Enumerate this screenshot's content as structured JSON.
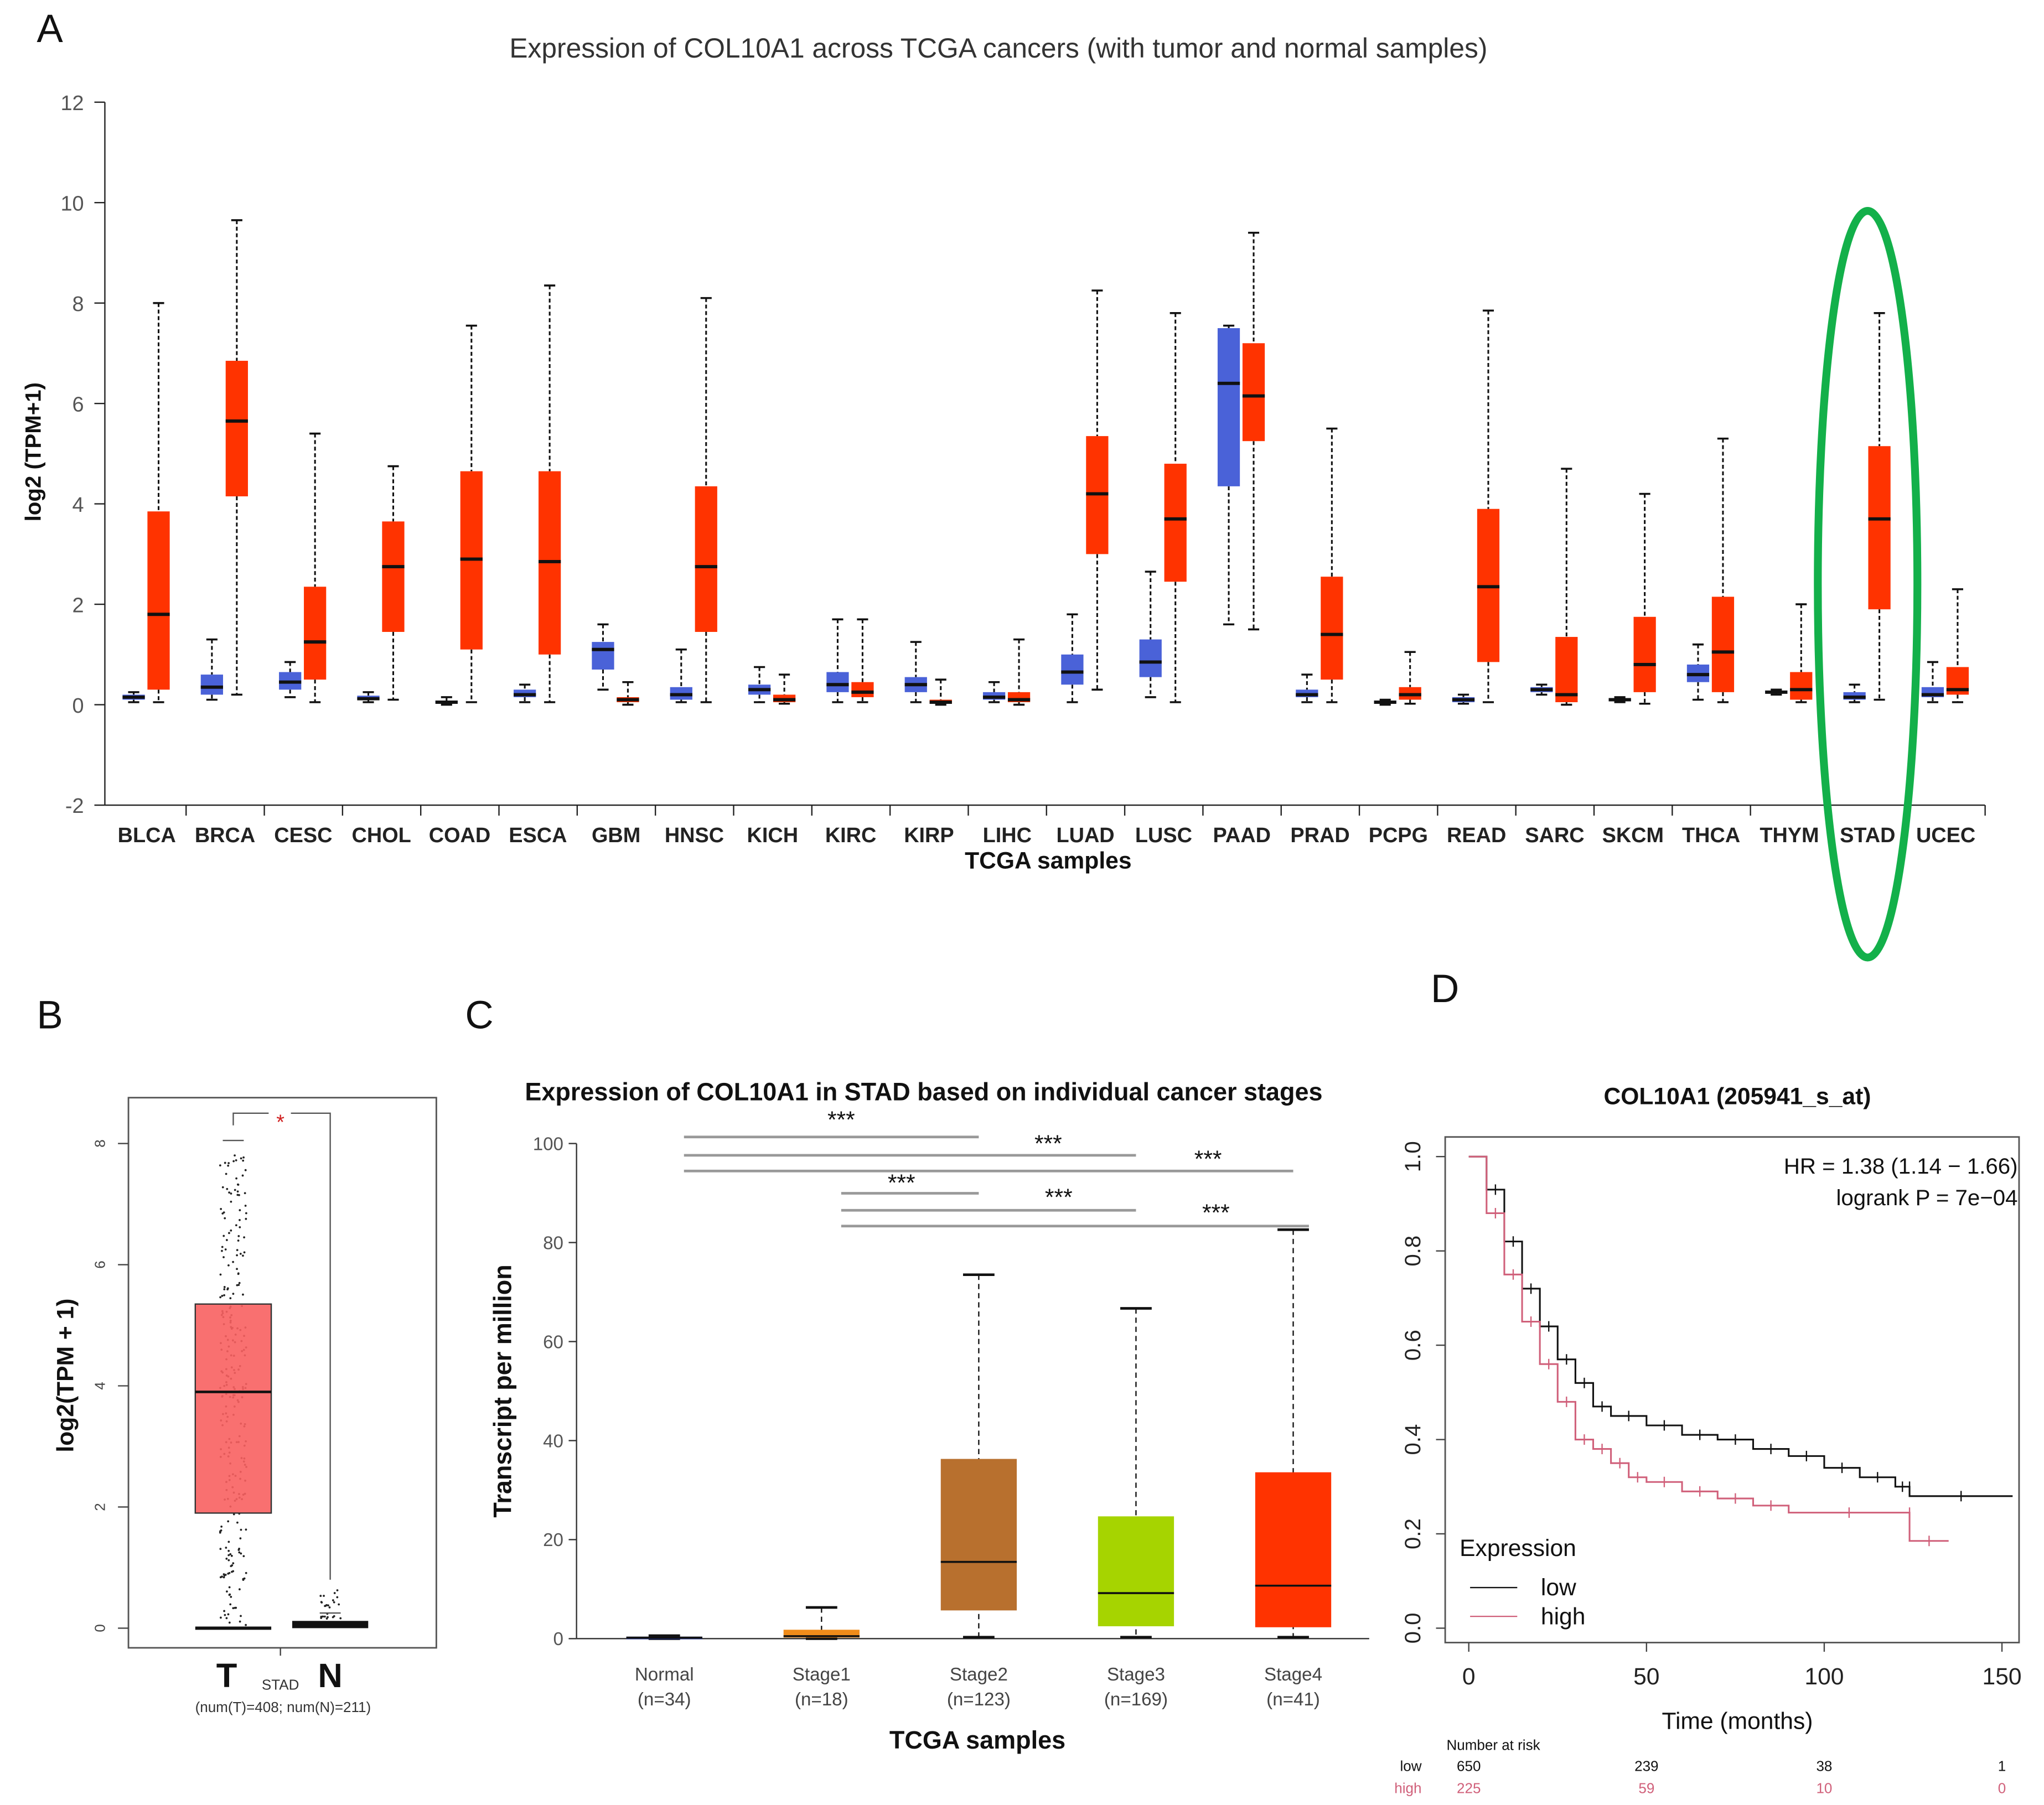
{
  "panel_labels": {
    "a": "A",
    "b": "B",
    "c": "C",
    "d": "D"
  },
  "chart_data": [
    {
      "type": "box",
      "panel": "A",
      "title": "Expression of COL10A1 across TCGA cancers (with tumor and normal samples)",
      "xlabel": "TCGA samples",
      "ylabel": "log2 (TPM+1)",
      "ylim": [
        -2,
        12
      ],
      "yticks": [
        "-2",
        "0",
        "2",
        "4",
        "6",
        "8",
        "10",
        "12"
      ],
      "colors": {
        "normal": "#4a62d8",
        "tumor": "#ff3300",
        "highlight": "#13b04a"
      },
      "highlighted": "STAD",
      "series_order": [
        "normal [min,q1,median,q3,max]",
        "tumor [min,q1,median,q3,max]"
      ],
      "categories": [
        {
          "name": "BLCA",
          "normal": [
            0.05,
            0.1,
            0.15,
            0.2,
            0.25
          ],
          "tumor": [
            0.05,
            0.3,
            1.8,
            3.85,
            8.0
          ]
        },
        {
          "name": "BRCA",
          "normal": [
            0.1,
            0.2,
            0.35,
            0.6,
            1.3
          ],
          "tumor": [
            0.2,
            4.15,
            5.65,
            6.85,
            9.65
          ]
        },
        {
          "name": "CESC",
          "normal": [
            0.15,
            0.3,
            0.45,
            0.65,
            0.85
          ],
          "tumor": [
            0.05,
            0.5,
            1.25,
            2.35,
            5.4
          ]
        },
        {
          "name": "CHOL",
          "normal": [
            0.05,
            0.1,
            0.12,
            0.18,
            0.25
          ],
          "tumor": [
            0.1,
            1.45,
            2.75,
            3.65,
            4.75
          ]
        },
        {
          "name": "COAD",
          "normal": [
            0.0,
            0.03,
            0.05,
            0.08,
            0.15
          ],
          "tumor": [
            0.05,
            1.1,
            2.9,
            4.65,
            7.55
          ]
        },
        {
          "name": "ESCA",
          "normal": [
            0.05,
            0.15,
            0.2,
            0.3,
            0.4
          ],
          "tumor": [
            0.05,
            1.0,
            2.85,
            4.65,
            8.35
          ]
        },
        {
          "name": "GBM",
          "normal": [
            0.3,
            0.7,
            1.1,
            1.25,
            1.6
          ],
          "tumor": [
            0.0,
            0.05,
            0.1,
            0.15,
            0.45
          ]
        },
        {
          "name": "HNSC",
          "normal": [
            0.05,
            0.1,
            0.2,
            0.35,
            1.1
          ],
          "tumor": [
            0.05,
            1.45,
            2.75,
            4.35,
            8.1
          ]
        },
        {
          "name": "KICH",
          "normal": [
            0.05,
            0.2,
            0.3,
            0.4,
            0.75
          ],
          "tumor": [
            0.02,
            0.05,
            0.1,
            0.2,
            0.6
          ]
        },
        {
          "name": "KIRC",
          "normal": [
            0.05,
            0.25,
            0.4,
            0.65,
            1.7
          ],
          "tumor": [
            0.05,
            0.15,
            0.25,
            0.45,
            1.7
          ]
        },
        {
          "name": "KIRP",
          "normal": [
            0.05,
            0.25,
            0.4,
            0.55,
            1.25
          ],
          "tumor": [
            0.0,
            0.02,
            0.05,
            0.1,
            0.5
          ]
        },
        {
          "name": "LIHC",
          "normal": [
            0.05,
            0.1,
            0.15,
            0.25,
            0.45
          ],
          "tumor": [
            0.0,
            0.05,
            0.1,
            0.25,
            1.3
          ]
        },
        {
          "name": "LUAD",
          "normal": [
            0.05,
            0.4,
            0.65,
            1.0,
            1.8
          ],
          "tumor": [
            0.3,
            3.0,
            4.2,
            5.35,
            8.25
          ]
        },
        {
          "name": "LUSC",
          "normal": [
            0.15,
            0.55,
            0.85,
            1.3,
            2.65
          ],
          "tumor": [
            0.05,
            2.45,
            3.7,
            4.8,
            7.8
          ]
        },
        {
          "name": "PAAD",
          "normal": [
            1.6,
            4.35,
            6.4,
            7.5,
            7.55
          ],
          "tumor": [
            1.5,
            5.25,
            6.15,
            7.2,
            9.4
          ]
        },
        {
          "name": "PRAD",
          "normal": [
            0.05,
            0.15,
            0.2,
            0.3,
            0.6
          ],
          "tumor": [
            0.05,
            0.5,
            1.4,
            2.55,
            5.5
          ]
        },
        {
          "name": "PCPG",
          "normal": [
            0.0,
            0.03,
            0.05,
            0.08,
            0.1
          ],
          "tumor": [
            0.02,
            0.1,
            0.2,
            0.35,
            1.05
          ]
        },
        {
          "name": "READ",
          "normal": [
            0.02,
            0.05,
            0.1,
            0.15,
            0.2
          ],
          "tumor": [
            0.05,
            0.85,
            2.35,
            3.9,
            7.85
          ]
        },
        {
          "name": "SARC",
          "normal": [
            0.2,
            0.25,
            0.3,
            0.35,
            0.4
          ],
          "tumor": [
            0.0,
            0.05,
            0.2,
            1.35,
            4.7
          ]
        },
        {
          "name": "SKCM",
          "normal": [
            0.05,
            0.08,
            0.1,
            0.12,
            0.15
          ],
          "tumor": [
            0.02,
            0.25,
            0.8,
            1.75,
            4.2
          ]
        },
        {
          "name": "THCA",
          "normal": [
            0.1,
            0.45,
            0.6,
            0.8,
            1.2
          ],
          "tumor": [
            0.05,
            0.25,
            1.05,
            2.15,
            5.3
          ]
        },
        {
          "name": "THYM",
          "normal": [
            0.2,
            0.23,
            0.25,
            0.28,
            0.3
          ],
          "tumor": [
            0.05,
            0.1,
            0.3,
            0.65,
            2.0
          ]
        },
        {
          "name": "STAD",
          "normal": [
            0.05,
            0.1,
            0.15,
            0.25,
            0.4
          ],
          "tumor": [
            0.1,
            1.9,
            3.7,
            5.15,
            7.8
          ]
        },
        {
          "name": "UCEC",
          "normal": [
            0.05,
            0.15,
            0.2,
            0.35,
            0.85
          ],
          "tumor": [
            0.05,
            0.2,
            0.3,
            0.75,
            2.3
          ]
        }
      ]
    },
    {
      "type": "box",
      "panel": "B",
      "ylabel": "log2(TPM + 1)",
      "ylim": [
        0,
        8.5
      ],
      "yticks": [
        "0",
        "2",
        "4",
        "6",
        "8"
      ],
      "categories": [
        "T",
        "N"
      ],
      "group_label": "STAD",
      "counts_label": "(num(T)=408; num(N)=211)",
      "significance": "*",
      "tumor_box": [
        0.0,
        1.9,
        3.9,
        5.35,
        8.05
      ],
      "normal_box": [
        0.0,
        0.02,
        0.06,
        0.12,
        0.25
      ],
      "colors": {
        "tumor": "#f86060",
        "sig": "#d02020"
      }
    },
    {
      "type": "box",
      "panel": "C",
      "title": "Expression of COL10A1 in STAD based on individual cancer stages",
      "xlabel": "TCGA samples",
      "ylabel": "Transcript per million",
      "ylim": [
        0,
        100
      ],
      "yticks": [
        "0",
        "20",
        "40",
        "60",
        "80",
        "100"
      ],
      "groups": [
        {
          "label": "Normal",
          "n": "(n=34)",
          "box": [
            0.0,
            0.1,
            0.2,
            0.4,
            0.6
          ],
          "color": "#1a2a80"
        },
        {
          "label": "Stage1",
          "n": "(n=18)",
          "box": [
            0.0,
            0.2,
            0.5,
            1.8,
            6.3
          ],
          "color": "#f08c1a"
        },
        {
          "label": "Stage2",
          "n": "(n=123)",
          "box": [
            0.3,
            5.7,
            15.5,
            36.3,
            73.5
          ],
          "color": "#b8702e"
        },
        {
          "label": "Stage3",
          "n": "(n=169)",
          "box": [
            0.3,
            2.5,
            9.2,
            24.7,
            66.7
          ],
          "color": "#a6d400"
        },
        {
          "label": "Stage4",
          "n": "(n=41)",
          "box": [
            0.3,
            2.3,
            10.7,
            33.6,
            82.6
          ],
          "color": "#ff3300"
        }
      ],
      "comparisons": [
        {
          "from": 0,
          "to": 2,
          "sig": "***"
        },
        {
          "from": 0,
          "to": 3,
          "sig": "***"
        },
        {
          "from": 0,
          "to": 4,
          "sig": "***"
        },
        {
          "from": 1,
          "to": 2,
          "sig": "***"
        },
        {
          "from": 1,
          "to": 3,
          "sig": "***"
        },
        {
          "from": 1,
          "to": 4,
          "sig": "***"
        }
      ]
    },
    {
      "type": "line",
      "panel": "D",
      "title": "COL10A1 (205941_s_at)",
      "xlabel": "Time (months)",
      "xlim": [
        0,
        150
      ],
      "ylim": [
        0,
        1
      ],
      "xticks": [
        "0",
        "50",
        "100",
        "150"
      ],
      "yticks": [
        "0.0",
        "0.2",
        "0.4",
        "0.6",
        "0.8",
        "1.0"
      ],
      "hr_text": "HR = 1.38 (1.14 − 1.66)",
      "logrank_text": "logrank P = 7e−04",
      "legend_title": "Expression",
      "legend_position": "bottom-left",
      "series": [
        {
          "name": "low",
          "color": "#111111",
          "x": [
            0,
            5,
            10,
            15,
            20,
            25,
            30,
            35,
            40,
            50,
            60,
            70,
            80,
            90,
            100,
            110,
            120,
            124,
            124,
            153
          ],
          "y": [
            1,
            0.93,
            0.82,
            0.72,
            0.64,
            0.57,
            0.52,
            0.47,
            0.45,
            0.43,
            0.41,
            0.4,
            0.38,
            0.365,
            0.34,
            0.32,
            0.3,
            0.3,
            0.28,
            0.28
          ]
        },
        {
          "name": "high",
          "color": "#d0607a",
          "x": [
            0,
            5,
            10,
            15,
            20,
            25,
            30,
            35,
            40,
            45,
            50,
            60,
            70,
            80,
            90,
            124,
            124,
            135
          ],
          "y": [
            1,
            0.88,
            0.75,
            0.65,
            0.56,
            0.48,
            0.4,
            0.38,
            0.35,
            0.32,
            0.31,
            0.29,
            0.275,
            0.26,
            0.245,
            0.245,
            0.185,
            0.185
          ]
        }
      ],
      "risk_table": {
        "title": "Number at risk",
        "rows": [
          {
            "label": "low",
            "values": [
              "650",
              "239",
              "38",
              "1"
            ],
            "color": "#111111"
          },
          {
            "label": "high",
            "values": [
              "225",
              "59",
              "10",
              "0"
            ],
            "color": "#d0607a"
          }
        ]
      }
    }
  ]
}
